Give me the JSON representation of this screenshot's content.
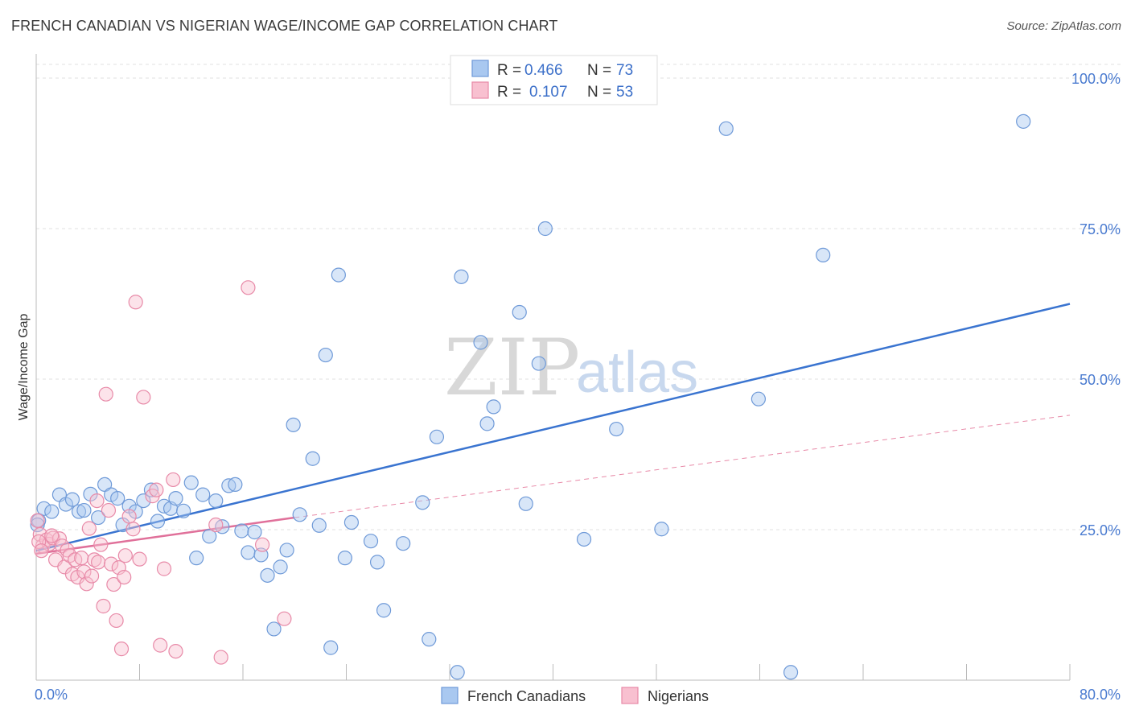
{
  "title": "FRENCH CANADIAN VS NIGERIAN WAGE/INCOME GAP CORRELATION CHART",
  "source": "Source: ZipAtlas.com",
  "watermark": {
    "zip": "ZIP",
    "atlas": "atlas"
  },
  "legend": {
    "rows": [
      {
        "r_label": "R =",
        "r_value": "0.466",
        "n_label": "N =",
        "n_value": "73",
        "color": "#a9c8f0",
        "stroke": "#6f9ad8"
      },
      {
        "r_label": "R =",
        "r_value": "0.107",
        "n_label": "N =",
        "n_value": "53",
        "color": "#f8c0d0",
        "stroke": "#e88aa8"
      }
    ]
  },
  "bottom_legend": [
    {
      "label": "French Canadians",
      "color": "#a9c8f0",
      "stroke": "#6f9ad8"
    },
    {
      "label": "Nigerians",
      "color": "#f8c0d0",
      "stroke": "#e88aa8"
    }
  ],
  "chart_data": {
    "type": "scatter",
    "title": "FRENCH CANADIAN VS NIGERIAN WAGE/INCOME GAP CORRELATION CHART",
    "xlabel": "",
    "ylabel": "Wage/Income Gap",
    "xlim": [
      0,
      80
    ],
    "ylim": [
      0,
      100
    ],
    "x_tick_labels": [
      "0.0%",
      "80.0%"
    ],
    "y_ticks": [
      25,
      50,
      75,
      100
    ],
    "y_tick_labels": [
      "25.0%",
      "50.0%",
      "75.0%",
      "100.0%"
    ],
    "grid": true,
    "series": [
      {
        "name": "French Canadians",
        "color": "#a9c8f0",
        "stroke": "#6f9ad8",
        "points": [
          [
            0.2,
            26.5
          ],
          [
            0.6,
            28.5
          ],
          [
            1.2,
            28.0
          ],
          [
            1.8,
            30.8
          ],
          [
            2.3,
            29.2
          ],
          [
            2.8,
            30.0
          ],
          [
            3.3,
            28.0
          ],
          [
            3.7,
            28.2
          ],
          [
            4.2,
            30.9
          ],
          [
            4.8,
            27.0
          ],
          [
            5.3,
            32.5
          ],
          [
            5.8,
            30.8
          ],
          [
            6.3,
            30.2
          ],
          [
            6.7,
            25.8
          ],
          [
            7.2,
            28.9
          ],
          [
            7.7,
            28.0
          ],
          [
            8.3,
            29.8
          ],
          [
            8.9,
            31.6
          ],
          [
            9.4,
            26.4
          ],
          [
            9.9,
            28.9
          ],
          [
            10.4,
            28.5
          ],
          [
            10.8,
            30.2
          ],
          [
            11.4,
            28.1
          ],
          [
            12.0,
            32.8
          ],
          [
            12.4,
            20.3
          ],
          [
            12.9,
            30.8
          ],
          [
            13.4,
            23.9
          ],
          [
            13.9,
            29.8
          ],
          [
            14.4,
            25.5
          ],
          [
            14.9,
            32.3
          ],
          [
            15.4,
            32.5
          ],
          [
            15.9,
            24.8
          ],
          [
            16.4,
            21.2
          ],
          [
            16.9,
            24.6
          ],
          [
            17.4,
            20.8
          ],
          [
            17.9,
            17.4
          ],
          [
            18.4,
            8.5
          ],
          [
            18.9,
            18.8
          ],
          [
            19.4,
            21.6
          ],
          [
            19.9,
            42.4
          ],
          [
            20.4,
            27.5
          ],
          [
            21.4,
            36.8
          ],
          [
            21.9,
            25.7
          ],
          [
            22.4,
            54.0
          ],
          [
            22.8,
            5.4
          ],
          [
            23.4,
            67.3
          ],
          [
            23.9,
            20.3
          ],
          [
            24.4,
            26.2
          ],
          [
            25.9,
            23.1
          ],
          [
            26.4,
            19.6
          ],
          [
            26.9,
            11.6
          ],
          [
            28.4,
            22.7
          ],
          [
            29.9,
            29.5
          ],
          [
            30.4,
            6.8
          ],
          [
            31.0,
            40.4
          ],
          [
            32.6,
            1.3
          ],
          [
            32.9,
            67.0
          ],
          [
            34.4,
            56.1
          ],
          [
            34.9,
            42.6
          ],
          [
            35.4,
            45.4
          ],
          [
            37.4,
            61.1
          ],
          [
            37.9,
            29.3
          ],
          [
            38.9,
            52.6
          ],
          [
            39.4,
            75.0
          ],
          [
            42.4,
            23.4
          ],
          [
            44.9,
            41.7
          ],
          [
            48.4,
            25.1
          ],
          [
            53.4,
            91.6
          ],
          [
            55.9,
            46.7
          ],
          [
            58.4,
            1.3
          ],
          [
            60.9,
            70.6
          ],
          [
            76.4,
            92.8
          ],
          [
            0.1,
            25.8
          ]
        ],
        "trend": {
          "x": [
            0,
            80
          ],
          "y": [
            21.5,
            62.5
          ]
        }
      },
      {
        "name": "Nigerians",
        "color": "#f8c0d0",
        "stroke": "#e88aa8",
        "points": [
          [
            0.1,
            26.5
          ],
          [
            0.3,
            24.2
          ],
          [
            0.5,
            22.3
          ],
          [
            0.8,
            23.3
          ],
          [
            1.0,
            22.6
          ],
          [
            1.3,
            23.6
          ],
          [
            1.5,
            20.0
          ],
          [
            1.8,
            23.5
          ],
          [
            2.0,
            22.3
          ],
          [
            2.2,
            18.8
          ],
          [
            2.4,
            21.6
          ],
          [
            2.6,
            20.7
          ],
          [
            2.8,
            17.6
          ],
          [
            3.0,
            20.0
          ],
          [
            3.2,
            17.1
          ],
          [
            3.5,
            20.3
          ],
          [
            3.7,
            18.0
          ],
          [
            3.9,
            16.0
          ],
          [
            4.1,
            25.2
          ],
          [
            4.3,
            17.3
          ],
          [
            4.5,
            20.0
          ],
          [
            4.7,
            29.8
          ],
          [
            4.8,
            19.6
          ],
          [
            5.0,
            22.5
          ],
          [
            5.2,
            12.3
          ],
          [
            5.4,
            47.5
          ],
          [
            5.6,
            28.2
          ],
          [
            5.8,
            19.3
          ],
          [
            6.0,
            15.9
          ],
          [
            6.2,
            9.9
          ],
          [
            6.4,
            18.7
          ],
          [
            6.6,
            5.2
          ],
          [
            6.8,
            17.1
          ],
          [
            6.9,
            20.7
          ],
          [
            7.2,
            27.2
          ],
          [
            7.5,
            25.1
          ],
          [
            7.7,
            62.8
          ],
          [
            8.0,
            20.1
          ],
          [
            8.3,
            47.0
          ],
          [
            9.0,
            30.6
          ],
          [
            9.3,
            31.6
          ],
          [
            9.6,
            5.8
          ],
          [
            9.9,
            18.5
          ],
          [
            10.6,
            33.3
          ],
          [
            10.8,
            4.8
          ],
          [
            13.9,
            25.8
          ],
          [
            14.3,
            3.8
          ],
          [
            16.4,
            65.2
          ],
          [
            17.5,
            22.5
          ],
          [
            19.2,
            10.2
          ],
          [
            0.2,
            23.0
          ],
          [
            0.4,
            21.5
          ],
          [
            1.2,
            24.0
          ]
        ],
        "trend": {
          "x": [
            0,
            20
          ],
          "y": [
            21.0,
            27.0
          ]
        },
        "trend_dashed": {
          "x": [
            20,
            80
          ],
          "y": [
            27.0,
            44.0
          ]
        }
      }
    ]
  }
}
